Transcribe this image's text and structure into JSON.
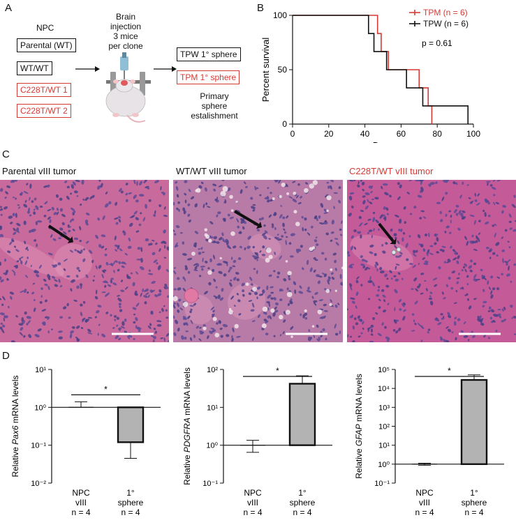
{
  "panels": {
    "a": "A",
    "b": "B",
    "c": "C",
    "d": "D"
  },
  "panelA": {
    "npc_label": "NPC",
    "boxes": [
      "Parental (WT)",
      "WT/WT",
      "C228T/WT 1",
      "C228T/WT 2"
    ],
    "injection_lines": [
      "Brain",
      "injection",
      "3 mice",
      "per clone"
    ],
    "sphere_boxes": [
      "TPW 1° sphere",
      "TPM 1° sphere"
    ],
    "caption_lines": [
      "Primary",
      "sphere",
      "estalishment"
    ],
    "colors": {
      "red": "#d63a34",
      "black": "#111111"
    }
  },
  "chart_data": [
    {
      "type": "line",
      "subtype": "kaplan-meier",
      "xlabel": "Days",
      "ylabel": "Percent survival",
      "xlim": [
        0,
        100
      ],
      "ylim": [
        0,
        100
      ],
      "xticks": [
        0,
        20,
        40,
        60,
        80,
        100
      ],
      "yticks": [
        0,
        50,
        100
      ],
      "legend_position": "top-right",
      "annotation": "p = 0.61",
      "series": [
        {
          "name": "TPM (n = 6)",
          "color": "#d63a34",
          "steps": [
            [
              0,
              100
            ],
            [
              47,
              100
            ],
            [
              47,
              83.3
            ],
            [
              49,
              83.3
            ],
            [
              49,
              66.7
            ],
            [
              53,
              66.7
            ],
            [
              53,
              50
            ],
            [
              70,
              50
            ],
            [
              70,
              33.3
            ],
            [
              75,
              33.3
            ],
            [
              75,
              16.7
            ],
            [
              77,
              16.7
            ],
            [
              77,
              0
            ]
          ]
        },
        {
          "name": "TPW (n = 6)",
          "color": "#111111",
          "steps": [
            [
              0,
              100
            ],
            [
              42,
              100
            ],
            [
              42,
              83.3
            ],
            [
              45,
              83.3
            ],
            [
              45,
              66.7
            ],
            [
              52,
              66.7
            ],
            [
              52,
              50
            ],
            [
              63,
              50
            ],
            [
              63,
              33.3
            ],
            [
              72,
              33.3
            ],
            [
              72,
              16.7
            ],
            [
              97,
              16.7
            ],
            [
              97,
              0
            ]
          ]
        }
      ]
    },
    {
      "type": "bar",
      "scale": "log",
      "ylabel_pre": "Relative ",
      "ylabel_gene": "Pax6",
      "ylabel_post": " mRNA levels",
      "ylim_exp": [
        -2,
        1
      ],
      "categories": [
        [
          "NPC",
          "vIII",
          "n = 4"
        ],
        [
          "1°",
          "sphere",
          "n = 4"
        ]
      ],
      "values": [
        1,
        0.12
      ],
      "error_upper": [
        1.4,
        null
      ],
      "error_lower": [
        null,
        0.045
      ],
      "significance": "*"
    },
    {
      "type": "bar",
      "scale": "log",
      "ylabel_pre": "Relative ",
      "ylabel_gene": "PDGFRA",
      "ylabel_post": " mRNA levels",
      "ylim_exp": [
        -1,
        2
      ],
      "categories": [
        [
          "NPC",
          "vIII",
          "n = 4"
        ],
        [
          "1°",
          "sphere",
          "n = 4"
        ]
      ],
      "values": [
        1,
        42
      ],
      "error_upper": [
        1.35,
        68
      ],
      "error_lower": [
        0.65,
        null
      ],
      "significance": "*"
    },
    {
      "type": "bar",
      "scale": "log",
      "ylabel_pre": "Relative ",
      "ylabel_gene": "GFAP",
      "ylabel_post": " mRNA levels",
      "ylim_exp": [
        -1,
        5
      ],
      "categories": [
        [
          "NPC",
          "vIII",
          "n = 4"
        ],
        [
          "1°",
          "sphere",
          "n = 4"
        ]
      ],
      "values": [
        1,
        28000
      ],
      "error_upper": [
        1.12,
        52000
      ],
      "error_lower": [
        0.88,
        null
      ],
      "significance": "*"
    }
  ],
  "panelC": {
    "titles": [
      "Parental vIII tumor",
      "WT/WT vIII tumor",
      "C228T/WT vIII tumor"
    ],
    "title_colors": [
      "#111111",
      "#111111",
      "#d63a34"
    ],
    "tissue_colors": [
      "#c86a9c",
      "#b87aa6",
      "#c45a98"
    ]
  }
}
